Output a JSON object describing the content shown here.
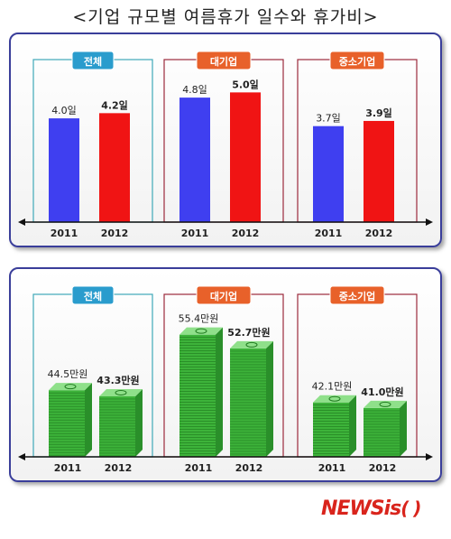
{
  "page_title": "<기업 규모별 여름휴가 일수와 휴가비>",
  "watermark": {
    "brand": "NEWSis",
    "suffix": "( )"
  },
  "colors": {
    "frame": "#3a3e9a",
    "group_all": "#3fa9b8",
    "group_large": "#9c2a3c",
    "group_sme": "#9c2a3c",
    "badge_all": "#2a9ccd",
    "badge_other": "#e8612a",
    "bar_2011": "#3f3ff0",
    "bar_2012": "#f01414",
    "money": "#3db33a"
  },
  "chart_data": [
    {
      "type": "bar",
      "title": "",
      "groups": [
        "전체",
        "대기업",
        "중소기업"
      ],
      "categories": [
        "2011",
        "2012"
      ],
      "values": [
        [
          4.0,
          4.2
        ],
        [
          4.8,
          5.0
        ],
        [
          3.7,
          3.9
        ]
      ],
      "value_labels": [
        [
          "4.0일",
          "4.2일"
        ],
        [
          "4.8일",
          "5.0일"
        ],
        [
          "3.7일",
          "3.9일"
        ]
      ],
      "unit": "일",
      "ylim": [
        0,
        5.5
      ]
    },
    {
      "type": "bar",
      "title": "",
      "groups": [
        "전체",
        "대기업",
        "중소기업"
      ],
      "categories": [
        "2011",
        "2012"
      ],
      "values": [
        [
          44.5,
          43.3
        ],
        [
          55.4,
          52.7
        ],
        [
          42.1,
          41.0
        ]
      ],
      "value_labels": [
        [
          "44.5만원",
          "43.3만원"
        ],
        [
          "55.4만원",
          "52.7만원"
        ],
        [
          "42.1만원",
          "41.0만원"
        ]
      ],
      "unit": "만원",
      "ylim": [
        30,
        58
      ],
      "bar_style": "stacked-banknotes"
    }
  ]
}
